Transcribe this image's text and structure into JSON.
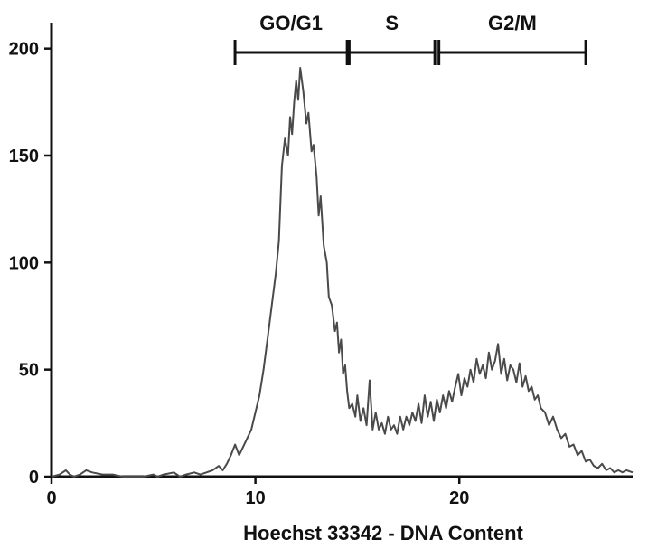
{
  "chart_data": {
    "type": "line",
    "title": "",
    "xlabel": "Hoechst 33342 - DNA Content",
    "ylabel": "",
    "xlim": [
      0,
      28.5
    ],
    "ylim": [
      0,
      210
    ],
    "xticks": [
      0,
      10,
      20
    ],
    "yticks": [
      0,
      50,
      100,
      150,
      200
    ],
    "grid": false,
    "legend": "none",
    "colors": {
      "line": "#4a4a4a",
      "axis": "#111111",
      "gates": "#111111"
    },
    "gates": [
      {
        "label": "GO/G1",
        "start": 9.0,
        "end": 14.5
      },
      {
        "label": "S",
        "start": 14.6,
        "end": 18.8
      },
      {
        "label": "G2/M",
        "start": 19.0,
        "end": 26.2
      }
    ],
    "series": [
      {
        "x": [
          0,
          0.4,
          0.7,
          0.9,
          1.1,
          1.4,
          1.7,
          2.0,
          2.5,
          3.0,
          3.5,
          4.0,
          4.5,
          5.0,
          5.2,
          5.5,
          6.0,
          6.3,
          6.6,
          7.0,
          7.3,
          7.6,
          7.9,
          8.2,
          8.4,
          8.6,
          8.8,
          9.0,
          9.2,
          9.4,
          9.6,
          9.8,
          10.0,
          10.2,
          10.4,
          10.6,
          10.8,
          11.0,
          11.15,
          11.3,
          11.45,
          11.6,
          11.7,
          11.8,
          11.9,
          12.0,
          12.1,
          12.2,
          12.35,
          12.5,
          12.6,
          12.75,
          12.85,
          13.0,
          13.1,
          13.2,
          13.35,
          13.5,
          13.6,
          13.75,
          13.9,
          14.0,
          14.1,
          14.2,
          14.3,
          14.4,
          14.5,
          14.6,
          14.75,
          14.9,
          15.0,
          15.15,
          15.3,
          15.45,
          15.6,
          15.75,
          15.9,
          16.05,
          16.2,
          16.35,
          16.5,
          16.65,
          16.8,
          16.95,
          17.1,
          17.25,
          17.4,
          17.55,
          17.7,
          17.85,
          18.0,
          18.15,
          18.3,
          18.45,
          18.6,
          18.75,
          18.9,
          19.05,
          19.2,
          19.35,
          19.5,
          19.65,
          19.8,
          19.95,
          20.1,
          20.25,
          20.4,
          20.55,
          20.7,
          20.85,
          21.0,
          21.15,
          21.3,
          21.45,
          21.6,
          21.75,
          21.9,
          22.05,
          22.2,
          22.35,
          22.5,
          22.65,
          22.8,
          22.95,
          23.1,
          23.25,
          23.4,
          23.55,
          23.7,
          23.85,
          24.0,
          24.2,
          24.4,
          24.6,
          24.8,
          25.0,
          25.2,
          25.4,
          25.6,
          25.8,
          26.0,
          26.2,
          26.4,
          26.6,
          26.8,
          27.0,
          27.2,
          27.4,
          27.6,
          27.8,
          28.0,
          28.2,
          28.5
        ],
        "y": [
          0,
          1,
          3,
          1,
          0,
          1,
          3,
          2,
          1,
          1,
          0,
          0,
          0,
          1,
          0,
          1,
          2,
          0,
          1,
          2,
          1,
          2,
          3,
          5,
          3,
          6,
          10,
          15,
          10,
          14,
          18,
          22,
          30,
          38,
          50,
          65,
          80,
          95,
          110,
          145,
          158,
          150,
          168,
          160,
          175,
          185,
          176,
          191,
          180,
          165,
          170,
          152,
          155,
          140,
          122,
          131,
          108,
          100,
          84,
          80,
          68,
          72,
          58,
          64,
          48,
          52,
          40,
          32,
          34,
          28,
          38,
          26,
          32,
          24,
          45,
          22,
          30,
          22,
          25,
          20,
          28,
          22,
          24,
          20,
          28,
          22,
          28,
          24,
          30,
          26,
          34,
          25,
          38,
          28,
          35,
          26,
          36,
          30,
          38,
          32,
          40,
          35,
          42,
          48,
          38,
          46,
          42,
          50,
          44,
          55,
          48,
          52,
          46,
          58,
          50,
          54,
          62,
          48,
          55,
          45,
          52,
          50,
          44,
          53,
          42,
          47,
          40,
          42,
          36,
          38,
          32,
          30,
          24,
          28,
          22,
          18,
          20,
          14,
          15,
          10,
          12,
          7,
          8,
          5,
          4,
          6,
          3,
          4,
          2,
          3,
          2,
          3,
          2
        ]
      }
    ]
  }
}
